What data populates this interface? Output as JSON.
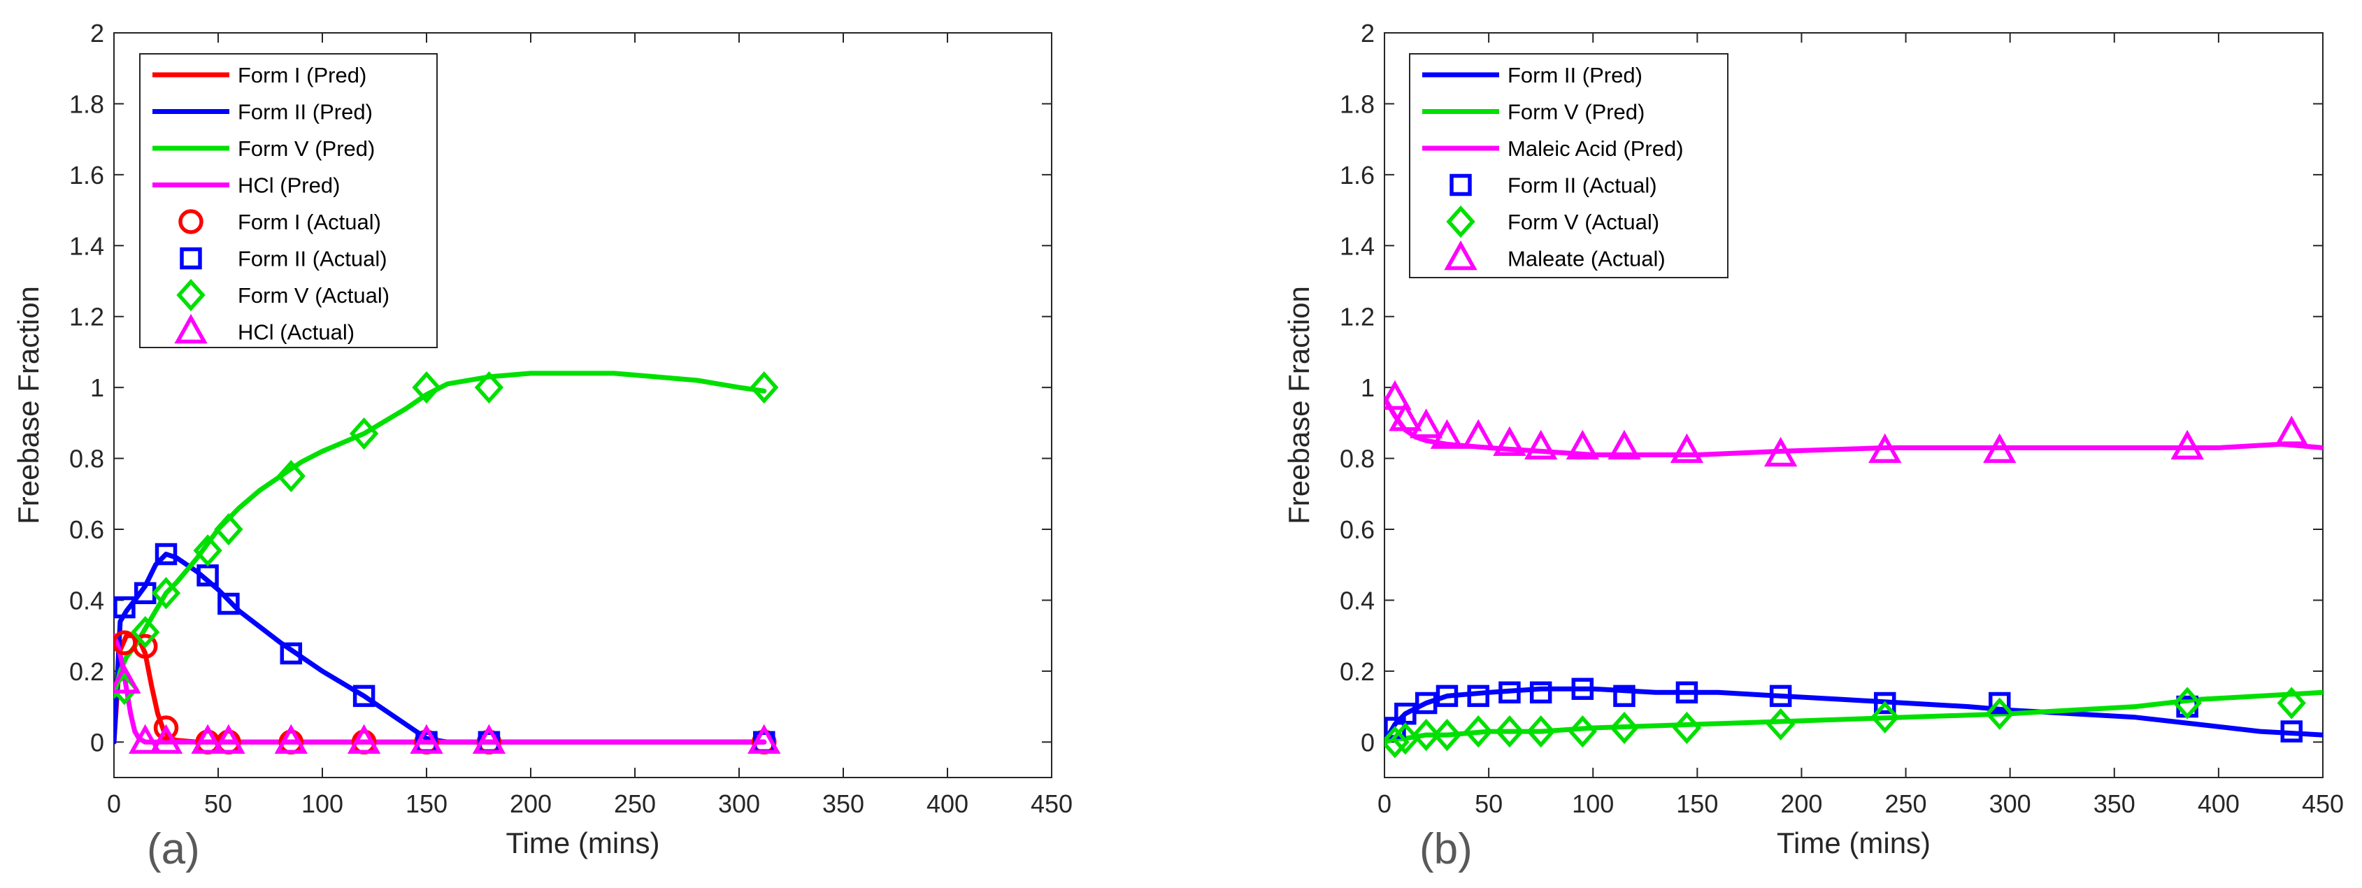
{
  "chart_data": [
    {
      "type": "line",
      "panel_label": "(a)",
      "xlabel": "Time (mins)",
      "ylabel": "Freebase Fraction",
      "xlim": [
        0,
        450
      ],
      "ylim": [
        -0.1,
        2
      ],
      "xticks": [
        0,
        50,
        100,
        150,
        200,
        250,
        300,
        350,
        400,
        450
      ],
      "yticks": [
        0,
        0.2,
        0.4,
        0.6,
        0.8,
        1,
        1.2,
        1.4,
        1.6,
        1.8,
        2
      ],
      "legend_position": "top-left",
      "series": [
        {
          "name": "Form I (Pred)",
          "kind": "line",
          "color": "#ff0000",
          "x": [
            0,
            3,
            6,
            9,
            12,
            15,
            18,
            21,
            24,
            27,
            30,
            40,
            60,
            100,
            150,
            200,
            250,
            312
          ],
          "y": [
            0.0,
            0.26,
            0.3,
            0.3,
            0.29,
            0.25,
            0.16,
            0.08,
            0.03,
            0.01,
            0.005,
            0.0,
            0.0,
            0.0,
            0.0,
            0.0,
            0.0,
            0.0
          ]
        },
        {
          "name": "Form II (Pred)",
          "kind": "line",
          "color": "#0000ff",
          "x": [
            0,
            3,
            6,
            10,
            15,
            20,
            25,
            30,
            40,
            50,
            60,
            80,
            100,
            120,
            140,
            150,
            160,
            180,
            200,
            250,
            312
          ],
          "y": [
            0.0,
            0.34,
            0.37,
            0.4,
            0.44,
            0.5,
            0.53,
            0.52,
            0.48,
            0.43,
            0.37,
            0.28,
            0.2,
            0.13,
            0.05,
            0.01,
            0.0,
            0.0,
            0.0,
            0.0,
            0.0
          ]
        },
        {
          "name": "Form V (Pred)",
          "kind": "line",
          "color": "#00e000",
          "x": [
            0,
            3,
            6,
            10,
            15,
            20,
            25,
            30,
            40,
            50,
            60,
            70,
            80,
            90,
            100,
            120,
            140,
            150,
            160,
            180,
            200,
            220,
            240,
            260,
            280,
            300,
            312
          ],
          "y": [
            0.13,
            0.2,
            0.24,
            0.27,
            0.32,
            0.37,
            0.42,
            0.45,
            0.52,
            0.6,
            0.66,
            0.71,
            0.75,
            0.79,
            0.82,
            0.87,
            0.94,
            0.98,
            1.01,
            1.03,
            1.04,
            1.04,
            1.04,
            1.03,
            1.02,
            1.0,
            0.99
          ]
        },
        {
          "name": "HCl (Pred)",
          "kind": "line",
          "color": "#ff00ff",
          "x": [
            0,
            2,
            4,
            6,
            8,
            10,
            12,
            15,
            20,
            30,
            50,
            100,
            150,
            200,
            250,
            312
          ],
          "y": [
            0.3,
            0.27,
            0.22,
            0.15,
            0.08,
            0.03,
            0.01,
            0.0,
            0.0,
            0.0,
            0.0,
            0.0,
            0.0,
            0.0,
            0.0,
            0.0
          ]
        },
        {
          "name": "Form I (Actual)",
          "kind": "marker",
          "marker": "circle",
          "color": "#ff0000",
          "x": [
            5,
            15,
            25,
            45,
            55,
            85,
            120,
            150,
            180,
            312
          ],
          "y": [
            0.28,
            0.27,
            0.04,
            0.0,
            0.0,
            0.0,
            0.0,
            0.0,
            0.0,
            0.0
          ]
        },
        {
          "name": "Form II (Actual)",
          "kind": "marker",
          "marker": "square",
          "color": "#0000ff",
          "x": [
            5,
            15,
            25,
            45,
            55,
            85,
            120,
            150,
            180,
            312
          ],
          "y": [
            0.38,
            0.42,
            0.53,
            0.47,
            0.39,
            0.25,
            0.13,
            0.0,
            0.0,
            0.0
          ]
        },
        {
          "name": "Form V (Actual)",
          "kind": "marker",
          "marker": "diamond",
          "color": "#00e000",
          "x": [
            5,
            15,
            25,
            45,
            55,
            85,
            120,
            150,
            180,
            312
          ],
          "y": [
            0.15,
            0.31,
            0.42,
            0.54,
            0.6,
            0.75,
            0.87,
            1.0,
            1.0,
            1.0
          ]
        },
        {
          "name": "HCl (Actual)",
          "kind": "marker",
          "marker": "triangle",
          "color": "#ff00ff",
          "x": [
            5,
            15,
            25,
            45,
            55,
            85,
            120,
            150,
            180,
            312
          ],
          "y": [
            0.17,
            0.0,
            0.0,
            0.0,
            0.0,
            0.0,
            0.0,
            0.0,
            0.0,
            0.0
          ]
        }
      ]
    },
    {
      "type": "line",
      "panel_label": "(b)",
      "xlabel": "Time (mins)",
      "ylabel": "Freebase Fraction",
      "xlim": [
        0,
        450
      ],
      "ylim": [
        -0.1,
        2
      ],
      "xticks": [
        0,
        50,
        100,
        150,
        200,
        250,
        300,
        350,
        400,
        450
      ],
      "yticks": [
        0,
        0.2,
        0.4,
        0.6,
        0.8,
        1,
        1.2,
        1.4,
        1.6,
        1.8,
        2
      ],
      "legend_position": "top-left",
      "series": [
        {
          "name": "Form II (Pred)",
          "kind": "line",
          "color": "#0000ff",
          "x": [
            0,
            5,
            10,
            20,
            30,
            50,
            75,
            100,
            130,
            160,
            190,
            220,
            250,
            280,
            300,
            330,
            360,
            390,
            420,
            450
          ],
          "y": [
            0.0,
            0.05,
            0.08,
            0.11,
            0.13,
            0.14,
            0.15,
            0.15,
            0.14,
            0.14,
            0.13,
            0.12,
            0.11,
            0.1,
            0.09,
            0.08,
            0.07,
            0.05,
            0.03,
            0.02
          ]
        },
        {
          "name": "Form V (Pred)",
          "kind": "line",
          "color": "#00e000",
          "x": [
            0,
            5,
            10,
            20,
            30,
            50,
            75,
            100,
            150,
            200,
            250,
            300,
            330,
            360,
            390,
            420,
            450
          ],
          "y": [
            0.0,
            0.01,
            0.01,
            0.02,
            0.02,
            0.03,
            0.03,
            0.04,
            0.05,
            0.06,
            0.07,
            0.08,
            0.09,
            0.1,
            0.12,
            0.13,
            0.14
          ]
        },
        {
          "name": "Maleic Acid (Pred)",
          "kind": "line",
          "color": "#ff00ff",
          "x": [
            0,
            5,
            10,
            15,
            20,
            30,
            50,
            75,
            100,
            150,
            190,
            240,
            300,
            350,
            400,
            430,
            450
          ],
          "y": [
            0.97,
            0.92,
            0.88,
            0.86,
            0.85,
            0.84,
            0.83,
            0.82,
            0.81,
            0.81,
            0.82,
            0.83,
            0.83,
            0.83,
            0.83,
            0.84,
            0.83
          ]
        },
        {
          "name": "Form II (Actual)",
          "kind": "marker",
          "marker": "square",
          "color": "#0000ff",
          "x": [
            5,
            10,
            20,
            30,
            45,
            60,
            75,
            95,
            115,
            145,
            190,
            240,
            295,
            385,
            435
          ],
          "y": [
            0.04,
            0.08,
            0.11,
            0.13,
            0.13,
            0.14,
            0.14,
            0.15,
            0.13,
            0.14,
            0.13,
            0.11,
            0.11,
            0.1,
            0.03
          ]
        },
        {
          "name": "Form V (Actual)",
          "kind": "marker",
          "marker": "diamond",
          "color": "#00e000",
          "x": [
            5,
            10,
            20,
            30,
            45,
            60,
            75,
            95,
            115,
            145,
            190,
            240,
            295,
            385,
            435
          ],
          "y": [
            0.0,
            0.01,
            0.02,
            0.02,
            0.03,
            0.03,
            0.03,
            0.03,
            0.04,
            0.04,
            0.05,
            0.07,
            0.08,
            0.11,
            0.11
          ]
        },
        {
          "name": "Maleate (Actual)",
          "kind": "marker",
          "marker": "triangle",
          "color": "#ff00ff",
          "x": [
            5,
            10,
            20,
            30,
            45,
            60,
            75,
            95,
            115,
            145,
            190,
            240,
            295,
            385,
            435
          ],
          "y": [
            0.97,
            0.91,
            0.89,
            0.86,
            0.86,
            0.84,
            0.83,
            0.83,
            0.83,
            0.82,
            0.81,
            0.82,
            0.82,
            0.83,
            0.87
          ]
        }
      ]
    }
  ]
}
